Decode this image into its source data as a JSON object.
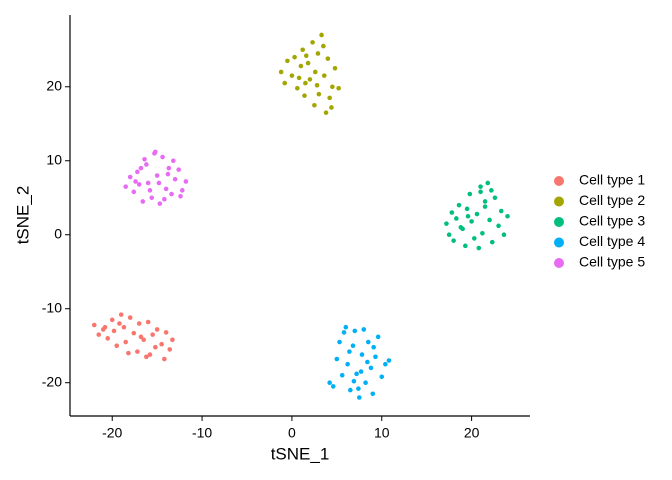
{
  "chart_data": {
    "type": "scatter",
    "x_label": "tSNE_1",
    "y_label": "tSNE_2",
    "xlim": [
      -24.7,
      26.5
    ],
    "ylim": [
      -24.5,
      29.7
    ],
    "xticks": [
      -20,
      -10,
      0,
      10,
      20
    ],
    "yticks": [
      -20,
      -10,
      0,
      10,
      20
    ],
    "grid": false,
    "legend": "right",
    "series": [
      {
        "name": "Cell type 1",
        "color": "#F8766D",
        "x": [
          -22,
          -21.5,
          -21,
          -20.5,
          -20,
          -19.8,
          -19.5,
          -19,
          -18.7,
          -18.5,
          -18,
          -17.6,
          -17.2,
          -17,
          -16.5,
          -16.2,
          -16,
          -15.5,
          -15.2,
          -15,
          -14.5,
          -14.2,
          -14,
          -13.6,
          -13.3,
          -19.2,
          -18.2,
          -16.8,
          -20.8,
          -15.8
        ],
        "values": [
          -12.2,
          -13.5,
          -12.8,
          -14,
          -11.5,
          -13,
          -15,
          -10.8,
          -12.5,
          -14.5,
          -11.2,
          -13.3,
          -15.8,
          -12,
          -14.2,
          -16.5,
          -11.8,
          -13.5,
          -15.2,
          -12.8,
          -14.8,
          -16.8,
          -13.2,
          -15.5,
          -14.2,
          -12,
          -16,
          -13.8,
          -12.5,
          -16.2
        ]
      },
      {
        "name": "Cell type 2",
        "color": "#A3A500",
        "x": [
          -1.2,
          -0.8,
          -0.5,
          0,
          0.3,
          0.6,
          1,
          1.2,
          1.5,
          1.8,
          2,
          2.3,
          2.6,
          2.9,
          3,
          3.3,
          3.6,
          4,
          4.2,
          4.5,
          4.8,
          5.2,
          0.8,
          2.5,
          3.8,
          1.6,
          2.8,
          4.4,
          3.5,
          1.4
        ],
        "values": [
          22,
          20.5,
          23.5,
          21.5,
          24,
          19.8,
          22.8,
          25,
          20.5,
          23.2,
          21,
          26,
          22,
          24.5,
          19,
          27,
          21.5,
          23.8,
          18.5,
          20,
          22.5,
          19.8,
          21.2,
          17.5,
          16.5,
          24.2,
          20.2,
          17.2,
          25.5,
          18.8
        ]
      },
      {
        "name": "Cell type 3",
        "color": "#00BF7D",
        "x": [
          17.2,
          17.5,
          17.8,
          18,
          18.3,
          18.6,
          19,
          19.3,
          19.5,
          19.8,
          20,
          20.3,
          20.6,
          21,
          21.2,
          21.5,
          21.8,
          22,
          22.3,
          22.6,
          23,
          23.3,
          23.6,
          24,
          20.8,
          21.5,
          19.6,
          22.2,
          18.8,
          21
        ],
        "values": [
          1.5,
          0,
          3,
          -0.8,
          2.2,
          4,
          0.8,
          -1.5,
          3.5,
          5.5,
          1.8,
          -0.5,
          2.8,
          6.5,
          0.2,
          4.5,
          7,
          2,
          -1,
          5,
          1.2,
          3.2,
          0,
          2.5,
          -1.8,
          3.8,
          2.5,
          6,
          1,
          5.8
        ]
      },
      {
        "name": "Cell type 4",
        "color": "#00B0F6",
        "x": [
          4.2,
          4.6,
          5,
          5.3,
          5.6,
          6,
          6.2,
          6.5,
          6.8,
          7,
          7.2,
          7.5,
          7.8,
          8,
          8.2,
          8.5,
          8.8,
          9,
          9.3,
          9.6,
          10,
          10.4,
          10.8,
          6.4,
          7.4,
          8.4,
          5.8,
          9.1,
          7.7,
          6.9
        ],
        "values": [
          -20,
          -20.5,
          -16.8,
          -14.5,
          -19,
          -12.5,
          -17.5,
          -21,
          -15,
          -13,
          -18.8,
          -22,
          -16.2,
          -12.8,
          -20,
          -14.5,
          -18,
          -21.5,
          -16.5,
          -13.8,
          -19.2,
          -17.5,
          -17,
          -15.8,
          -20.8,
          -17.2,
          -13.2,
          -15.2,
          -18.5,
          -19.8
        ]
      },
      {
        "name": "Cell type 5",
        "color": "#E76BF3",
        "x": [
          -18.5,
          -18,
          -17.6,
          -17.2,
          -17,
          -16.6,
          -16.2,
          -16,
          -15.6,
          -15.3,
          -15,
          -14.7,
          -14.4,
          -14,
          -13.7,
          -13.4,
          -13,
          -12.6,
          -12.2,
          -11.8,
          -15.2,
          -14.2,
          -16.8,
          -13.2,
          -15.8,
          -14.8,
          -12.4,
          -17.4,
          -13.8,
          -16.4
        ],
        "values": [
          6.5,
          7.8,
          5.8,
          8.5,
          6.8,
          4.5,
          9.5,
          7,
          5,
          11,
          8,
          4.2,
          10.5,
          6.2,
          9,
          5.5,
          7.5,
          8.8,
          6,
          7.2,
          11.2,
          4.8,
          9,
          10,
          6,
          7,
          5.2,
          7.2,
          8.2,
          10.2
        ]
      }
    ]
  }
}
